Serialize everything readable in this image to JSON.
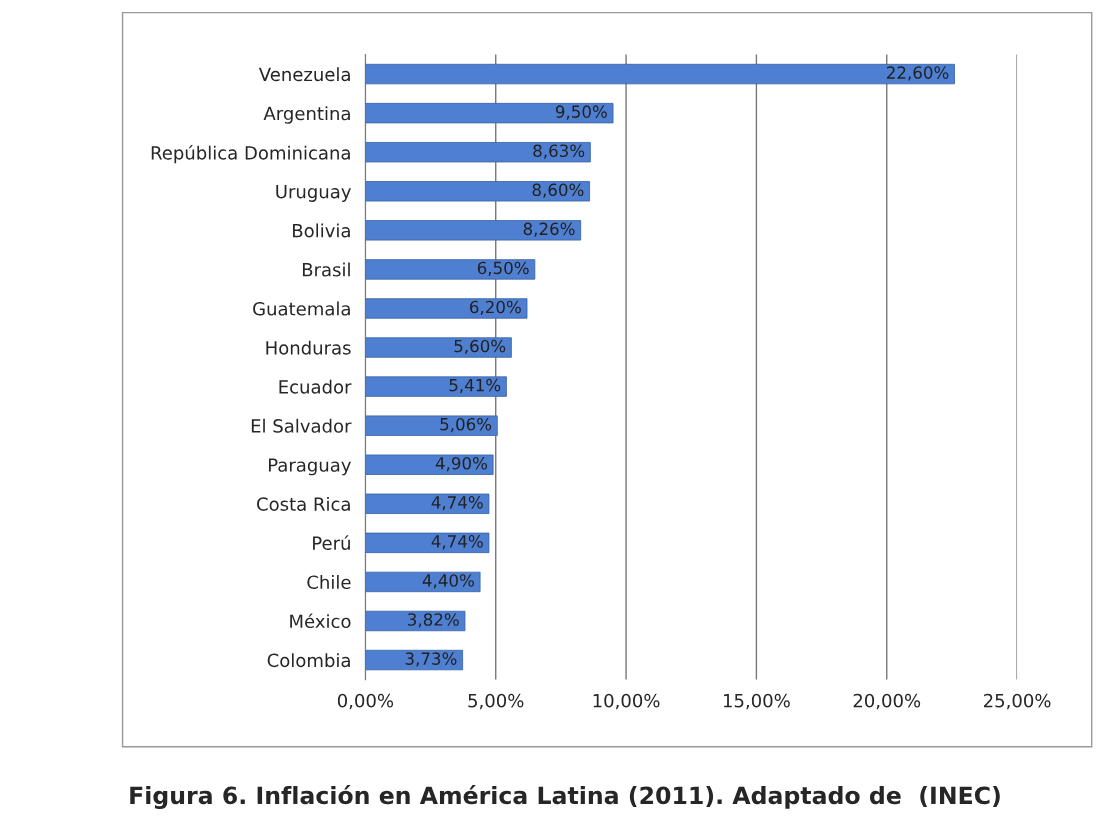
{
  "chart_data": {
    "type": "bar",
    "orientation": "horizontal",
    "categories": [
      "Venezuela",
      "Argentina",
      "República Dominicana",
      "Uruguay",
      "Bolivia",
      "Brasil",
      "Guatemala",
      "Honduras",
      "Ecuador",
      "El Salvador",
      "Paraguay",
      "Costa Rica",
      "Perú",
      "Chile",
      "México",
      "Colombia"
    ],
    "values": [
      22.6,
      9.5,
      8.63,
      8.6,
      8.26,
      6.5,
      6.2,
      5.6,
      5.41,
      5.06,
      4.9,
      4.74,
      4.74,
      4.4,
      3.82,
      3.73
    ],
    "value_labels": [
      "22,60%",
      "9,50%",
      "8,63%",
      "8,60%",
      "8,26%",
      "6,50%",
      "6,20%",
      "5,60%",
      "5,41%",
      "5,06%",
      "4,90%",
      "4,74%",
      "4,74%",
      "4,40%",
      "3,82%",
      "3,73%"
    ],
    "color": "#4f7fd0",
    "xlim": [
      0,
      25
    ],
    "xticks": [
      {
        "value": 0,
        "label": "0,00%"
      },
      {
        "value": 5,
        "label": "5,00%"
      },
      {
        "value": 10,
        "label": "10,00%"
      },
      {
        "value": 15,
        "label": "15,00%"
      },
      {
        "value": 20,
        "label": "20,00%"
      },
      {
        "value": 25,
        "label": "25,00%"
      }
    ],
    "grid": "x",
    "legend": false,
    "annotations": [
      "Figura 6. Inflación en América Latina (2011). Adaptado de  (INEC)"
    ]
  }
}
